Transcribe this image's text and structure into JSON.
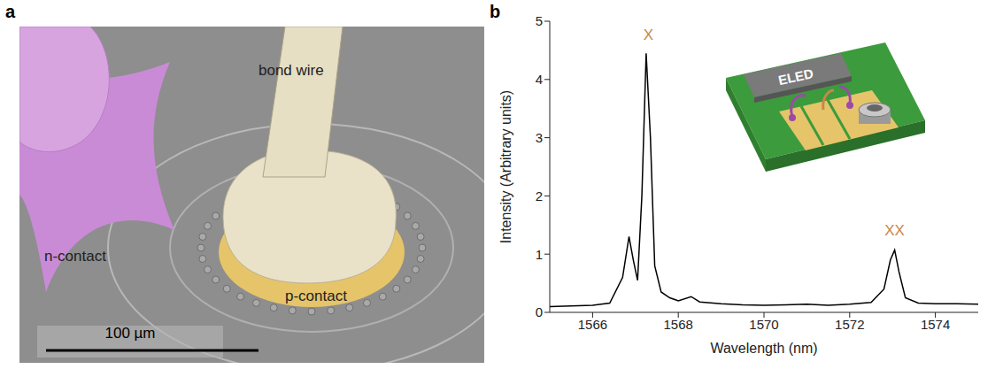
{
  "panel_a": {
    "letter": "a",
    "labels": {
      "bond_wire": "bond wire",
      "n_contact": "n-contact",
      "p_contact": "p-contact"
    },
    "scale_bar": "100 µm"
  },
  "panel_b": {
    "letter": "b",
    "inset": {
      "label": "ELED"
    }
  },
  "chart_data": {
    "type": "line",
    "x_label": "Wavelength (nm)",
    "y_label": "Intensity (Arbitrary units)",
    "x": [
      1565.0,
      1565.5,
      1566.0,
      1566.4,
      1566.7,
      1566.85,
      1566.95,
      1567.05,
      1567.15,
      1567.25,
      1567.35,
      1567.45,
      1567.6,
      1567.8,
      1568.0,
      1568.3,
      1568.5,
      1569.0,
      1569.5,
      1570.0,
      1570.5,
      1571.0,
      1571.5,
      1572.0,
      1572.5,
      1572.8,
      1572.95,
      1573.05,
      1573.15,
      1573.3,
      1573.6,
      1574.0,
      1574.5,
      1575.0
    ],
    "values": [
      0.1,
      0.11,
      0.12,
      0.16,
      0.6,
      1.3,
      0.9,
      0.55,
      2.0,
      4.45,
      3.0,
      0.8,
      0.35,
      0.25,
      0.2,
      0.27,
      0.18,
      0.15,
      0.13,
      0.12,
      0.13,
      0.14,
      0.12,
      0.14,
      0.17,
      0.4,
      0.9,
      1.07,
      0.7,
      0.25,
      0.16,
      0.15,
      0.15,
      0.14
    ],
    "color": "#000000",
    "xlim": [
      1565,
      1575
    ],
    "xticks": [
      1566,
      1568,
      1570,
      1572,
      1574
    ],
    "ylim": [
      0,
      5
    ],
    "yticks": [
      0,
      1,
      2,
      3,
      4,
      5
    ],
    "annotations": [
      {
        "text": "X",
        "x": 1567.3,
        "y": 4.6
      },
      {
        "text": "XX",
        "x": 1573.05,
        "y": 1.25
      }
    ]
  }
}
